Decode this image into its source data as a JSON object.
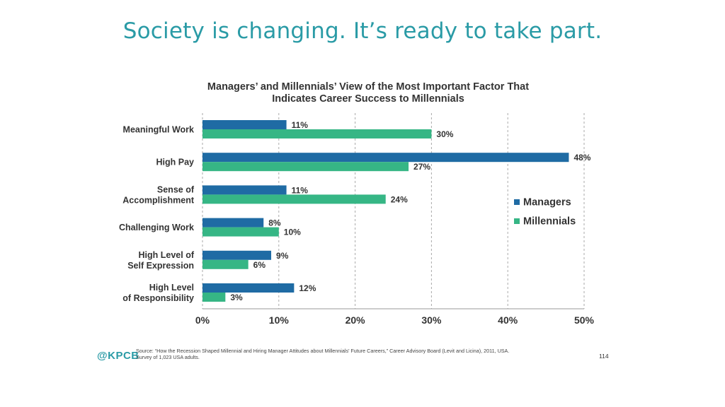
{
  "slide": {
    "title": "Society is changing. It’s ready to take part.",
    "logo": "@KPCB",
    "source_line1": "Source: “How the Recession Shaped Millennial and Hiring Manager Attitudes about Millennials’ Future Careers,” Career Advisory Board (Levit and Licina), 2011, USA.",
    "source_line2": "Survey of 1,023 USA adults.",
    "page_number": "114"
  },
  "colors": {
    "managers": "#1f6ba4",
    "millennials": "#36b685",
    "title": "#2a9ba6"
  },
  "chart_data": {
    "type": "bar",
    "orientation": "horizontal",
    "title_lines": [
      "Managers’ and Millennials’ View of the Most Important Factor That",
      "Indicates Career Success to Millennials"
    ],
    "categories": [
      [
        "Meaningful Work"
      ],
      [
        "High Pay"
      ],
      [
        "Sense of",
        "Accomplishment"
      ],
      [
        "Challenging Work"
      ],
      [
        "High Level of",
        "Self Expression"
      ],
      [
        "High Level",
        "of Responsibility"
      ]
    ],
    "series": [
      {
        "name": "Managers",
        "values": [
          11,
          48,
          11,
          8,
          9,
          12
        ]
      },
      {
        "name": "Millennials",
        "values": [
          30,
          27,
          24,
          10,
          6,
          3
        ]
      }
    ],
    "value_suffix": "%",
    "xlim": [
      0,
      50
    ],
    "ticks": [
      0,
      10,
      20,
      30,
      40,
      50
    ],
    "tick_labels": [
      "0%",
      "10%",
      "20%",
      "30%",
      "40%",
      "50%"
    ],
    "grid": "dashed vertical",
    "legend_position": "right"
  }
}
